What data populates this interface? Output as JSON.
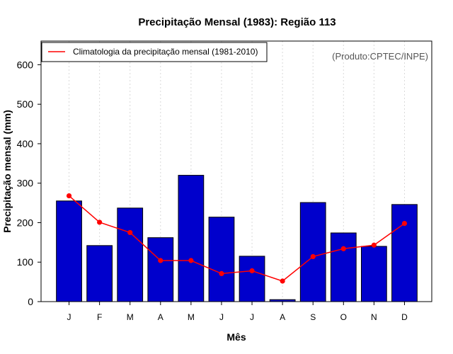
{
  "chart_data": {
    "type": "bar",
    "title": "Precipitação Mensal (1983): Região 113",
    "xlabel": "Mês",
    "ylabel": "Precipitação mensal (mm)",
    "categories": [
      "J",
      "F",
      "M",
      "A",
      "M",
      "J",
      "J",
      "A",
      "S",
      "O",
      "N",
      "D"
    ],
    "ylim": [
      0,
      660
    ],
    "yticks": [
      0,
      100,
      200,
      300,
      400,
      500,
      600
    ],
    "grid": "vertical-dotted",
    "series": [
      {
        "name": "Precipitação mensal 1983",
        "type": "bar",
        "color": "#0000cc",
        "values": [
          255,
          142,
          237,
          162,
          320,
          214,
          115,
          5,
          251,
          174,
          140,
          246
        ]
      },
      {
        "name": "Climatologia da precipitação mensal (1981-2010)",
        "type": "line",
        "color": "#ff0000",
        "values": [
          268,
          201,
          175,
          104,
          104,
          71,
          78,
          52,
          114,
          134,
          143,
          198
        ]
      }
    ],
    "legend": {
      "position": "top-left",
      "entries": [
        "Climatologia da precipitação mensal (1981-2010)"
      ]
    },
    "annotation": "(Produto:CPTEC/INPE)"
  }
}
